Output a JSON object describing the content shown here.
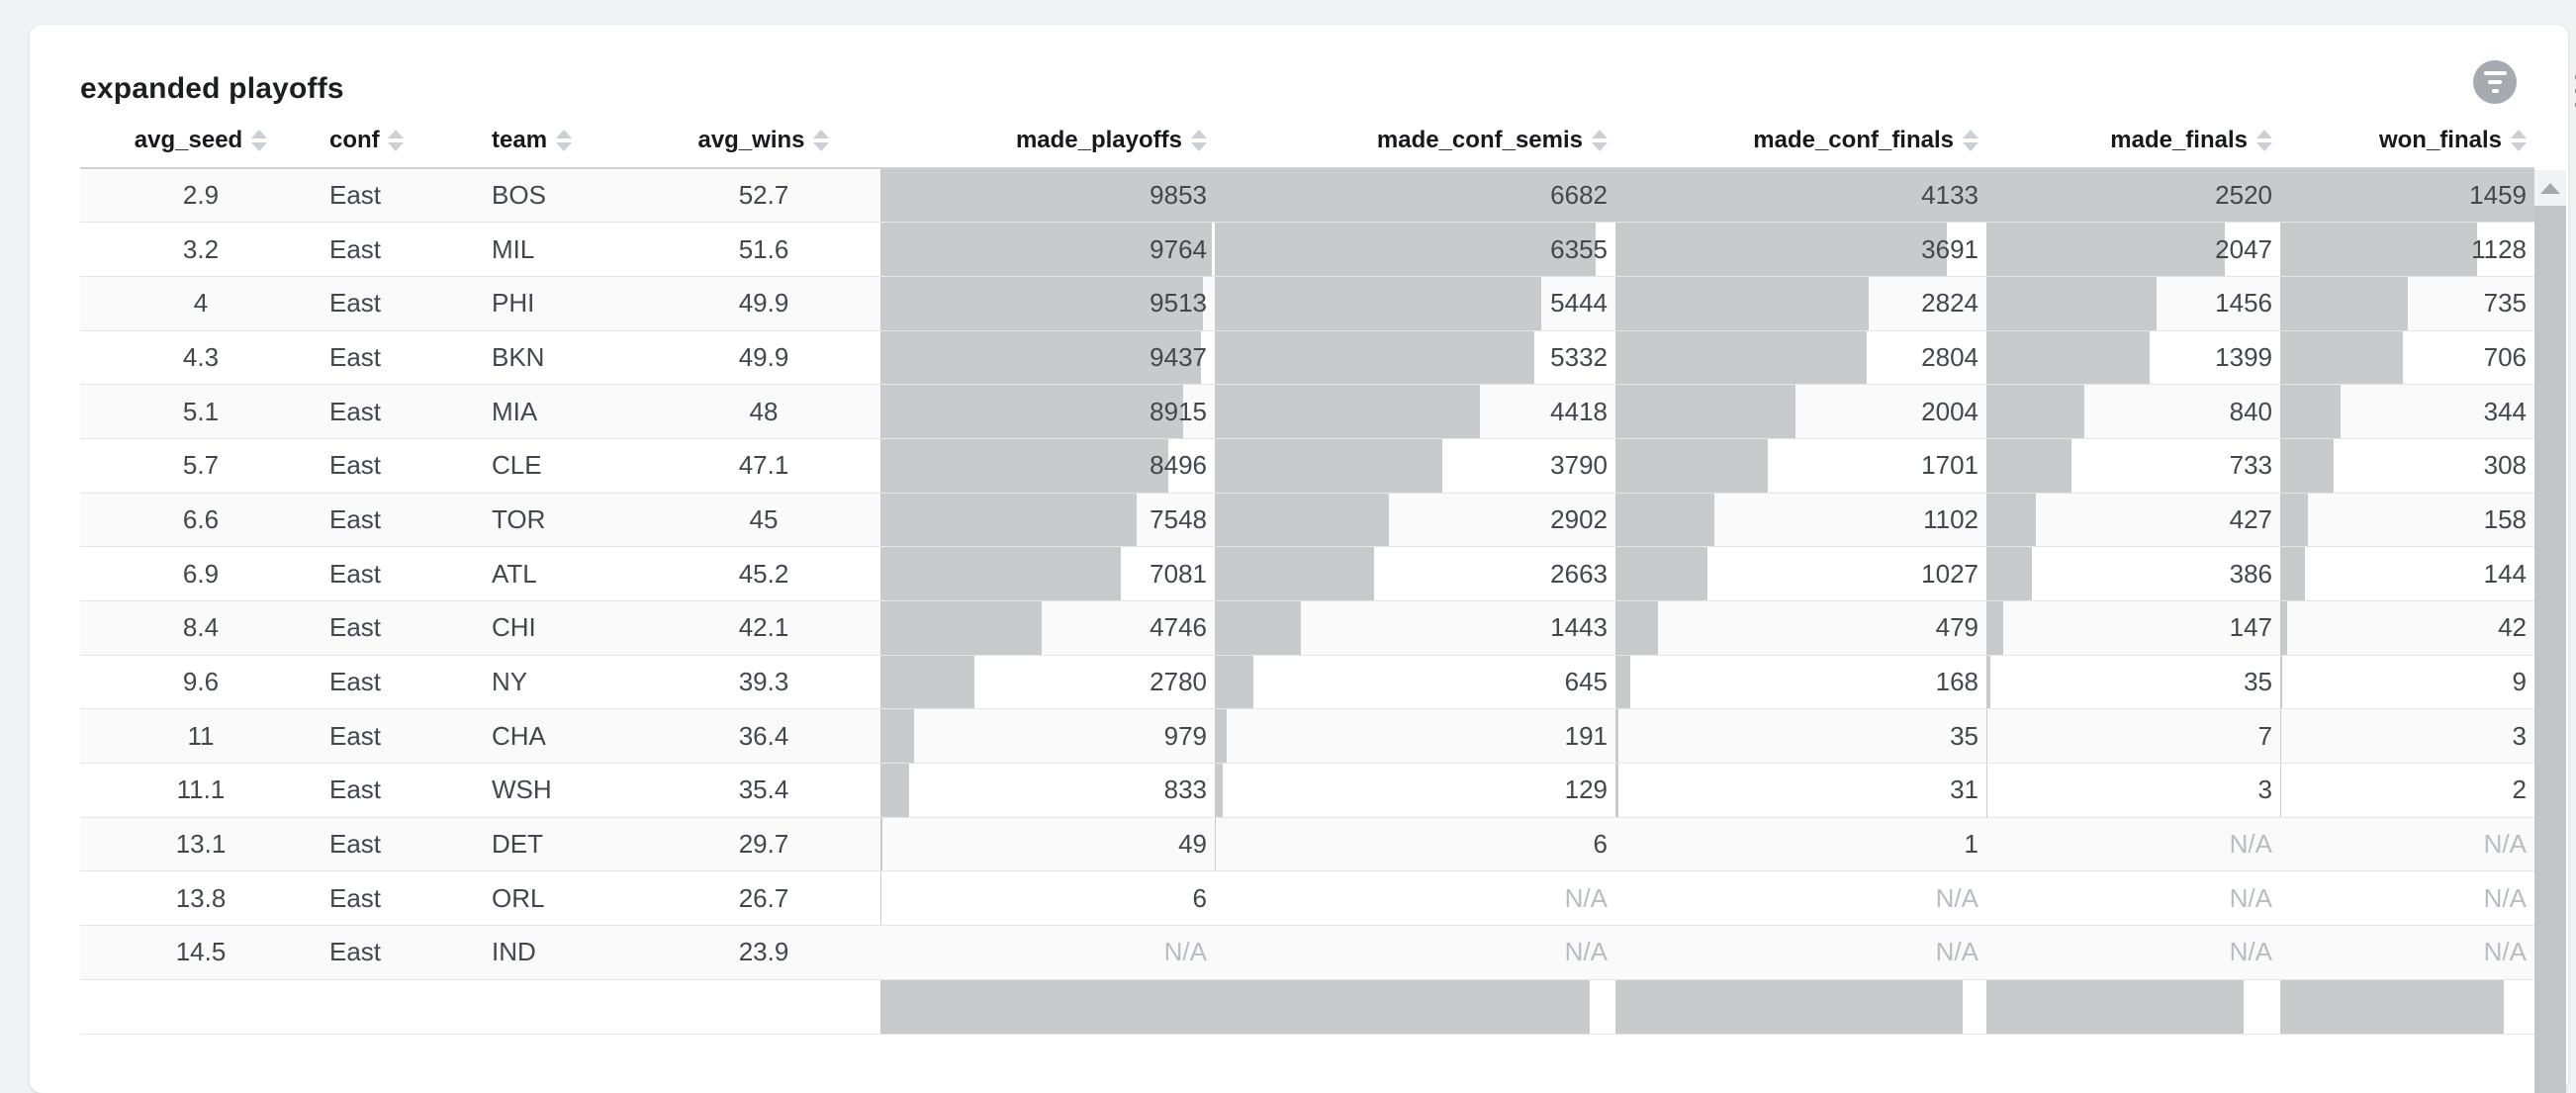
{
  "title": "expanded playoffs",
  "toolbar": {
    "filter_icon": "filter-list-icon",
    "menu_icon": "kebab-menu-icon"
  },
  "table": {
    "sort_icon": "sort-arrows-icon",
    "na_text": "N/A",
    "columns": [
      {
        "label": "avg_seed",
        "sortable": true
      },
      {
        "label": "conf",
        "sortable": true
      },
      {
        "label": "team",
        "sortable": true
      },
      {
        "label": "avg_wins",
        "sortable": true
      },
      {
        "label": "made_playoffs",
        "sortable": true
      },
      {
        "label": "made_conf_semis",
        "sortable": true
      },
      {
        "label": "made_conf_finals",
        "sortable": true
      },
      {
        "label": "made_finals",
        "sortable": true
      },
      {
        "label": "won_finals",
        "sortable": true
      }
    ],
    "rows": [
      [
        2.9,
        "East",
        "BOS",
        52.7,
        9853,
        6682,
        4133,
        2520,
        1459
      ],
      [
        3.2,
        "East",
        "MIL",
        51.6,
        9764,
        6355,
        3691,
        2047,
        1128
      ],
      [
        4,
        "East",
        "PHI",
        49.9,
        9513,
        5444,
        2824,
        1456,
        735
      ],
      [
        4.3,
        "East",
        "BKN",
        49.9,
        9437,
        5332,
        2804,
        1399,
        706
      ],
      [
        5.1,
        "East",
        "MIA",
        48,
        8915,
        4418,
        2004,
        840,
        344
      ],
      [
        5.7,
        "East",
        "CLE",
        47.1,
        8496,
        3790,
        1701,
        733,
        308
      ],
      [
        6.6,
        "East",
        "TOR",
        45,
        7548,
        2902,
        1102,
        427,
        158
      ],
      [
        6.9,
        "East",
        "ATL",
        45.2,
        7081,
        2663,
        1027,
        386,
        144
      ],
      [
        8.4,
        "East",
        "CHI",
        42.1,
        4746,
        1443,
        479,
        147,
        42
      ],
      [
        9.6,
        "East",
        "NY",
        39.3,
        2780,
        645,
        168,
        35,
        9
      ],
      [
        11,
        "East",
        "CHA",
        36.4,
        979,
        191,
        35,
        7,
        3
      ],
      [
        11.1,
        "East",
        "WSH",
        35.4,
        833,
        129,
        31,
        3,
        2
      ],
      [
        13.1,
        "East",
        "DET",
        29.7,
        49,
        6,
        1,
        "N/A",
        "N/A"
      ],
      [
        13.8,
        "East",
        "ORL",
        26.7,
        6,
        "N/A",
        "N/A",
        "N/A",
        "N/A"
      ],
      [
        14.5,
        "East",
        "IND",
        23.9,
        "N/A",
        "N/A",
        "N/A",
        "N/A",
        "N/A"
      ]
    ],
    "partial_next_row_bar_fractions": [
      1,
      0.936,
      0.936,
      0.875,
      0.879
    ]
  },
  "colors": {
    "bar": "#c9cacc",
    "page_background": "#f1f2f4",
    "filter_button": "#a6abb1"
  }
}
